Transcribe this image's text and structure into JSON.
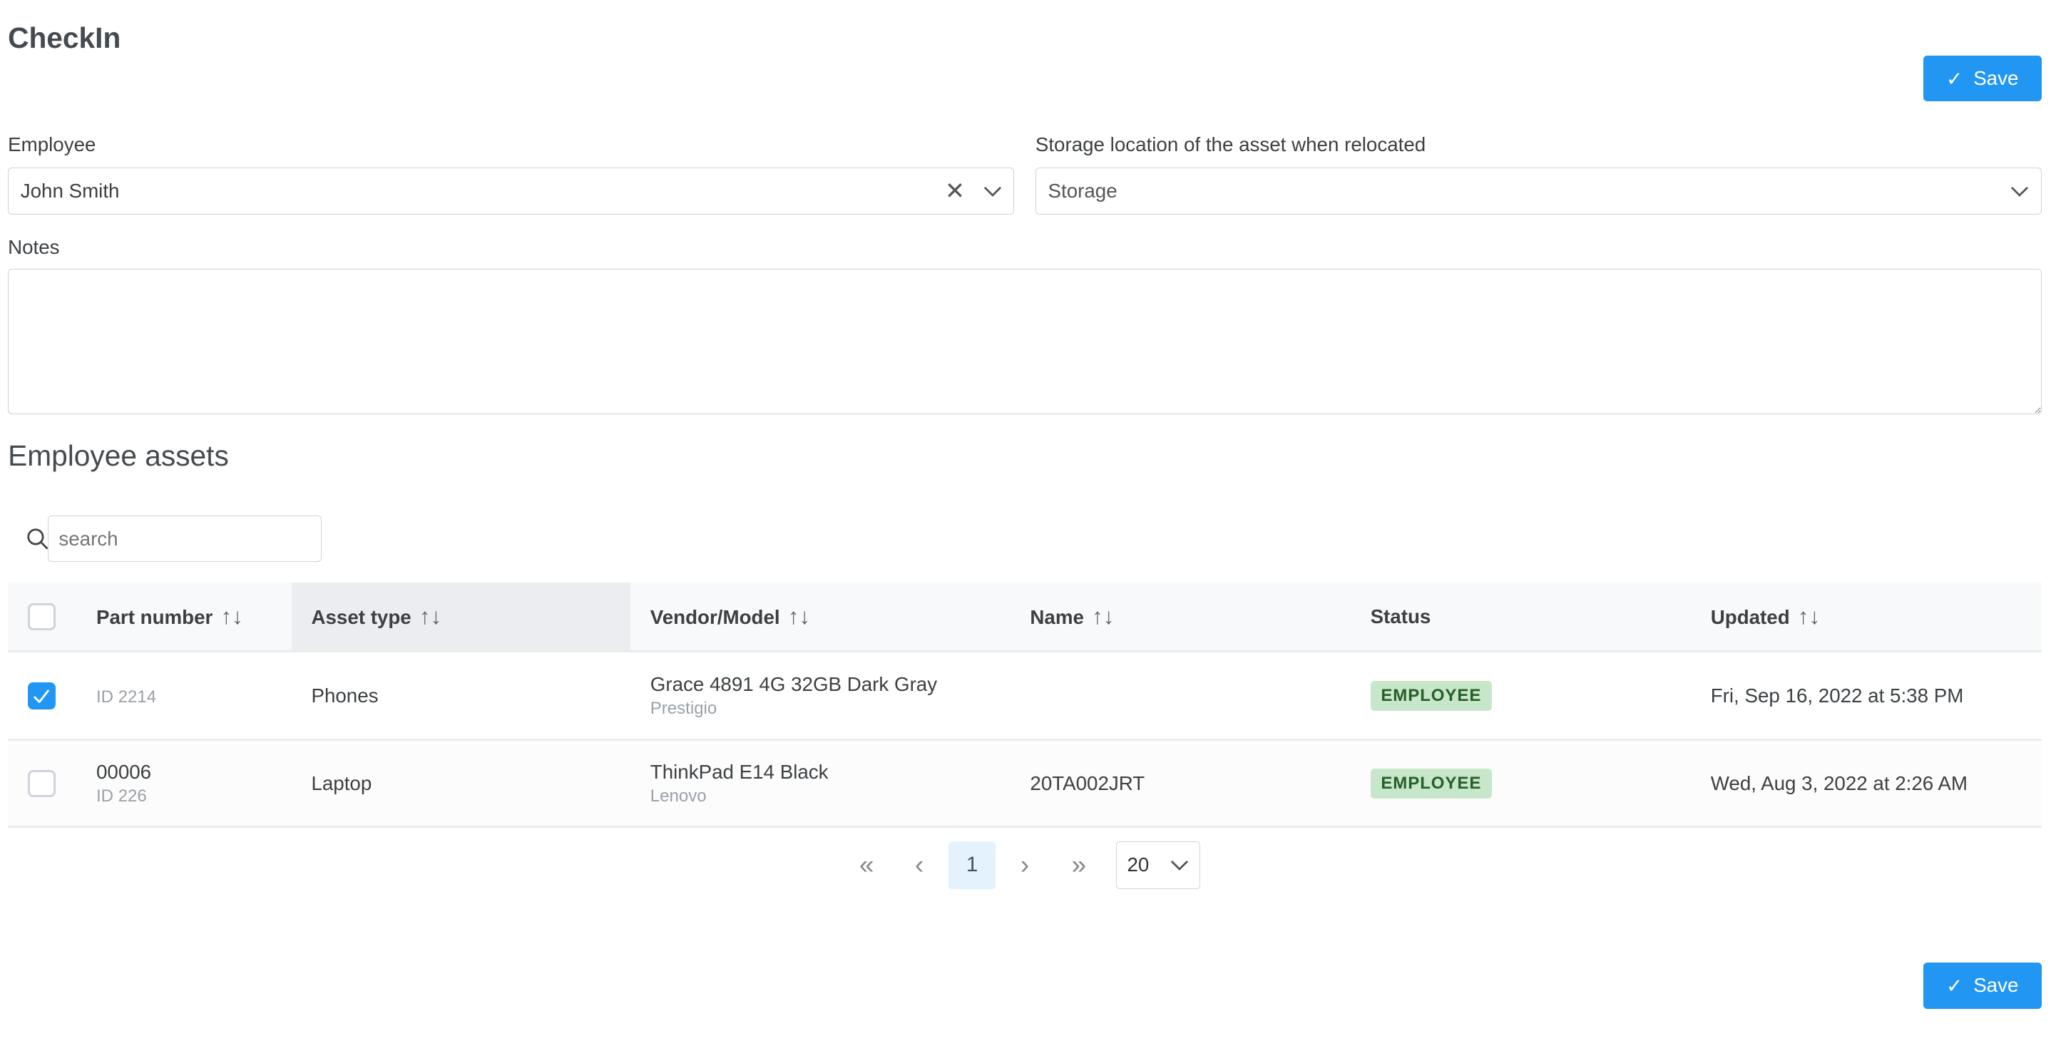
{
  "page": {
    "title": "CheckIn",
    "save_label": "Save"
  },
  "form": {
    "employee": {
      "label": "Employee",
      "value": "John Smith"
    },
    "storage": {
      "label": "Storage location of the asset when relocated",
      "value": "Storage"
    },
    "notes": {
      "label": "Notes",
      "value": ""
    }
  },
  "assets": {
    "title": "Employee assets",
    "search_placeholder": "search",
    "columns": [
      "Part number",
      "Asset type",
      "Vendor/Model",
      "Name",
      "Status",
      "Updated"
    ],
    "rows": [
      {
        "checked": true,
        "part": "",
        "id": "ID 2214",
        "type": "Phones",
        "model": "Grace 4891 4G 32GB Dark Gray",
        "vendor": "Prestigio",
        "name": "",
        "status": "EMPLOYEE",
        "updated": "Fri, Sep 16, 2022 at 5:38 PM"
      },
      {
        "checked": false,
        "part": "00006",
        "id": "ID 226",
        "type": "Laptop",
        "model": "ThinkPad E14 Black",
        "vendor": "Lenovo",
        "name": "20TA002JRT",
        "status": "EMPLOYEE",
        "updated": "Wed, Aug 3, 2022 at 2:26 AM"
      }
    ],
    "pagination": {
      "current": "1",
      "first": "«",
      "prev": "‹",
      "next": "›",
      "last": "»",
      "page_size": "20"
    }
  },
  "colors": {
    "primary": "#2196f3",
    "badge_bg": "#c8e6c9",
    "badge_text": "#256029"
  }
}
